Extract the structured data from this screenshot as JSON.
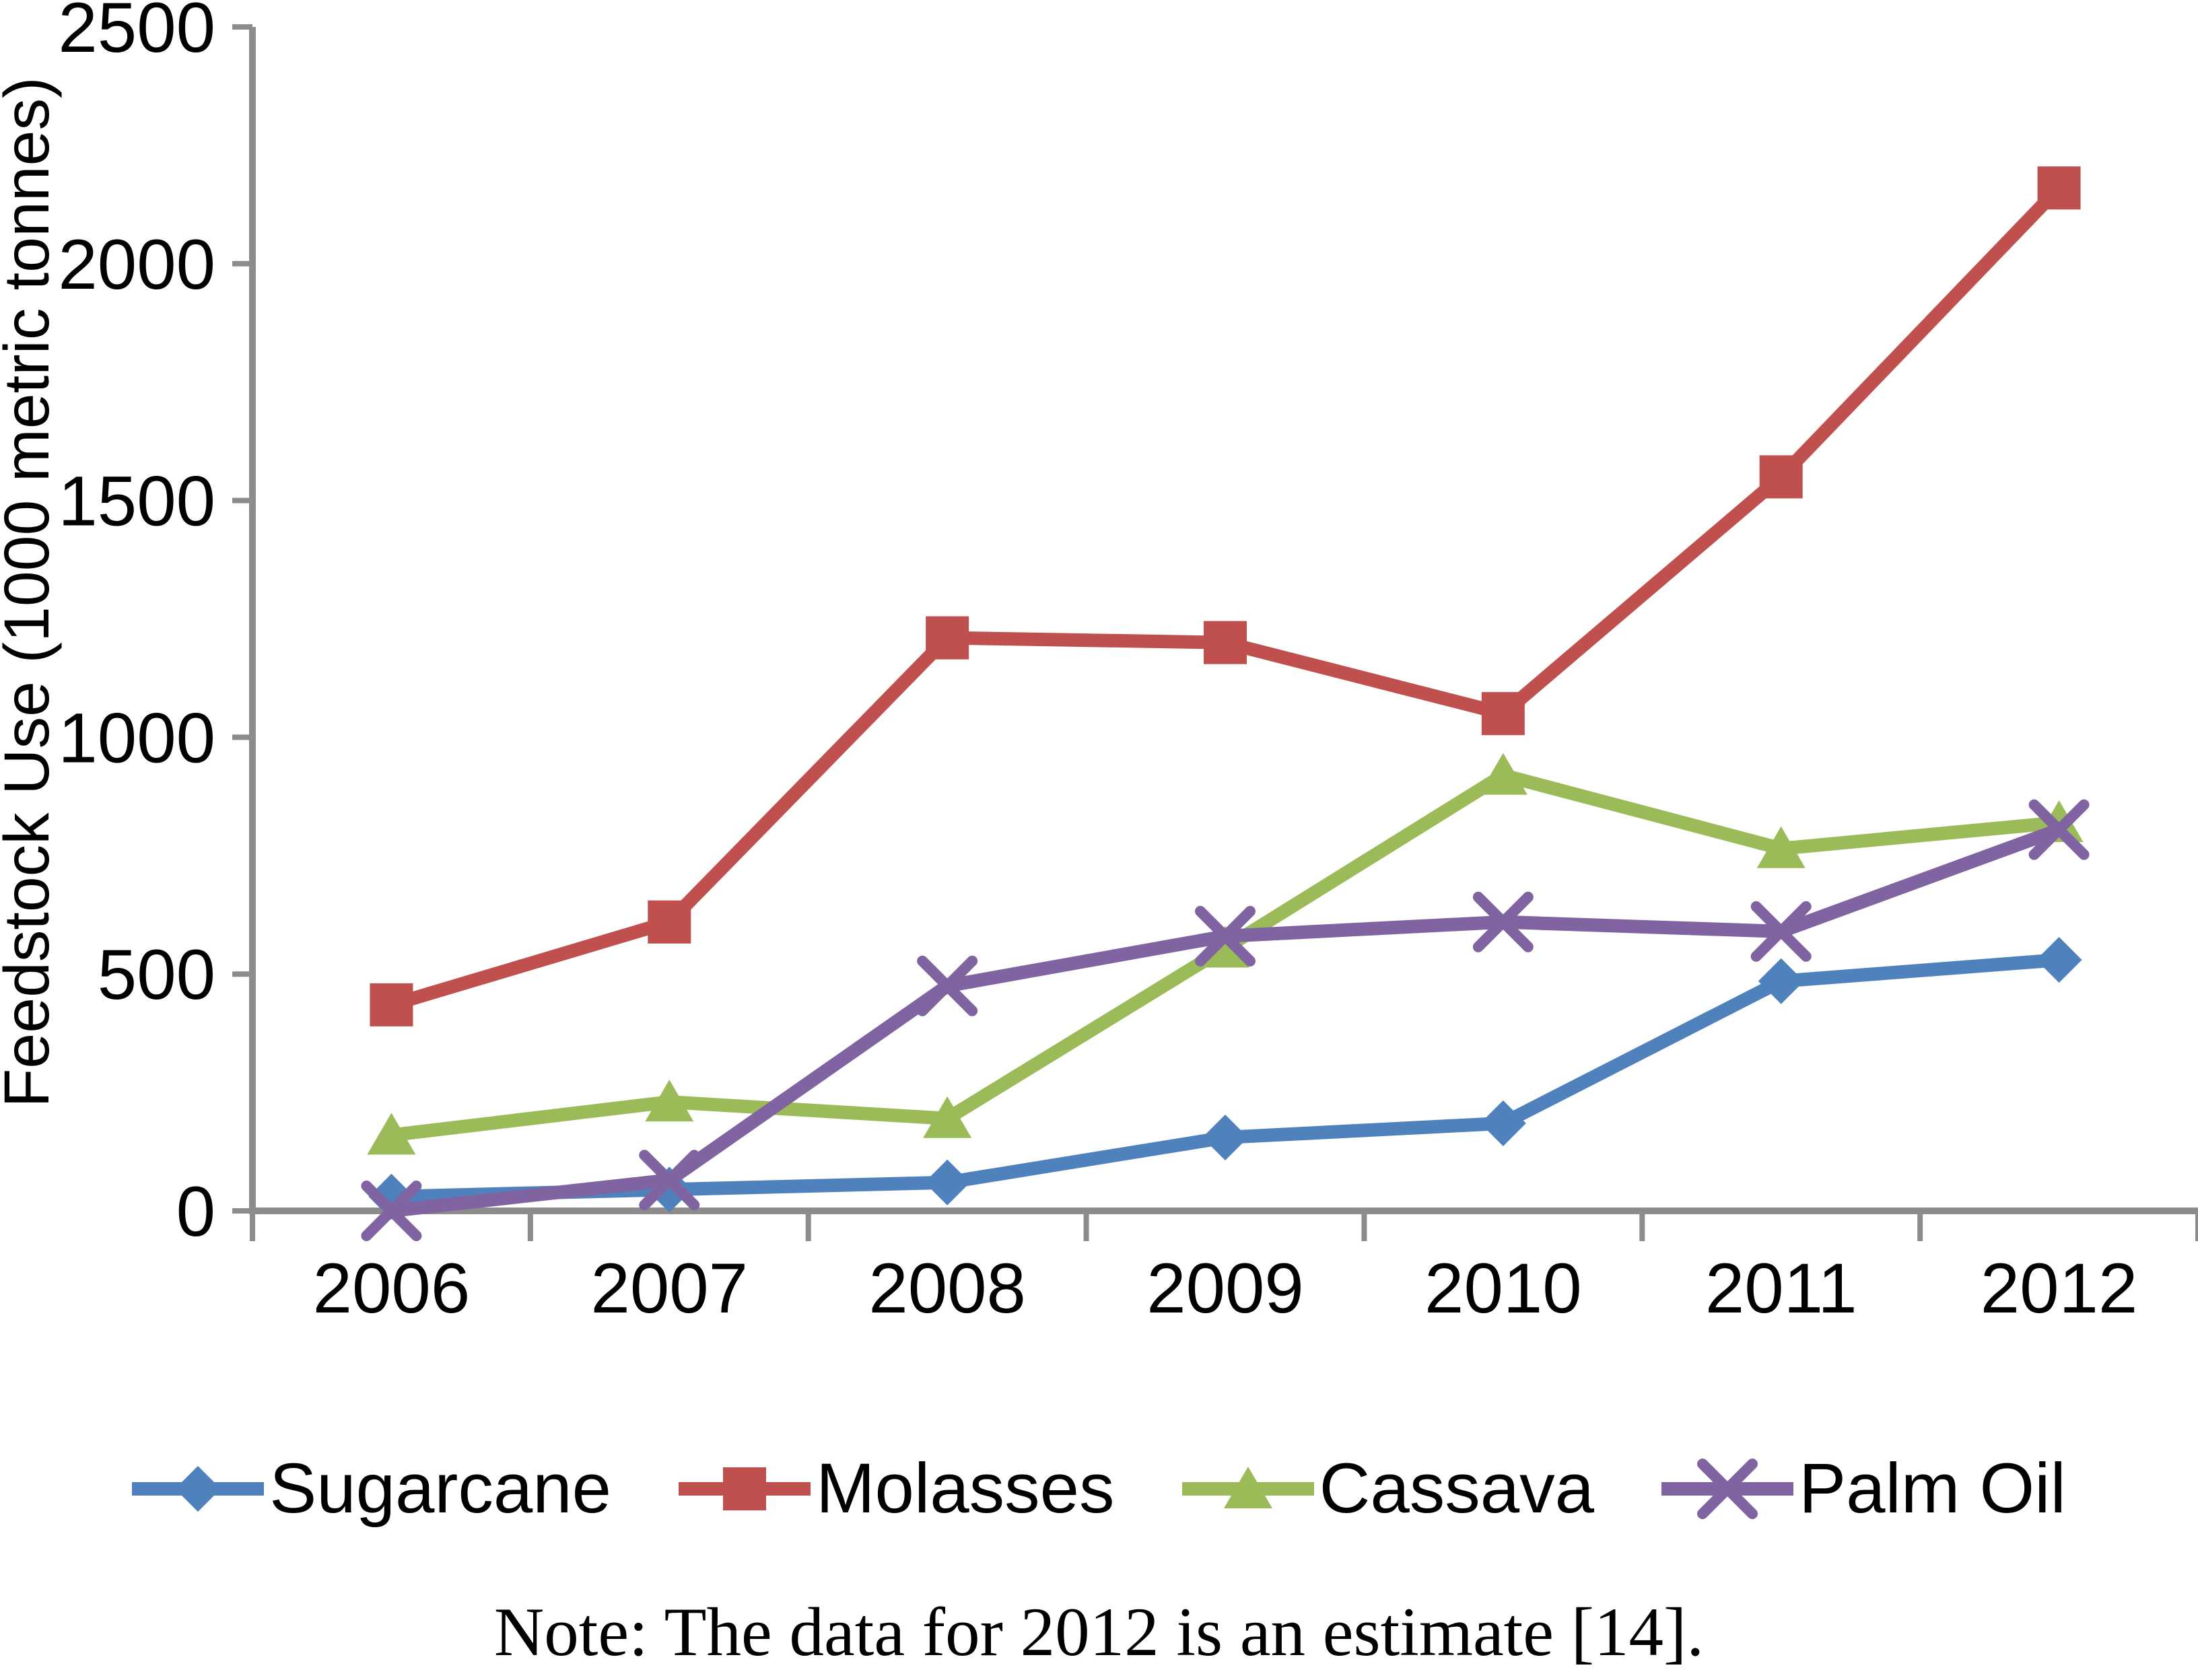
{
  "chart_data": {
    "type": "line",
    "title": "",
    "xlabel": "",
    "ylabel": "Feedstock Use (1000 metric tonnes)",
    "x": [
      "2006",
      "2007",
      "2008",
      "2009",
      "2010",
      "2011",
      "2012"
    ],
    "ylim": [
      0,
      2500
    ],
    "yticks": [
      0,
      500,
      1000,
      1500,
      2000,
      2500
    ],
    "grid": false,
    "legend_position": "bottom",
    "axis_color": "#8C8C8C",
    "text_color": "#000000",
    "series": [
      {
        "name": "Sugarcane",
        "marker": "diamond",
        "color": "#4F81BD",
        "values": [
          30,
          45,
          60,
          155,
          185,
          485,
          530
        ]
      },
      {
        "name": "Molasses",
        "marker": "square",
        "color": "#C0504D",
        "values": [
          435,
          610,
          1210,
          1200,
          1050,
          1550,
          2160
        ]
      },
      {
        "name": "Cassava",
        "marker": "triangle",
        "color": "#9BBB59",
        "values": [
          160,
          230,
          195,
          555,
          920,
          765,
          820
        ]
      },
      {
        "name": "Palm Oil",
        "marker": "x",
        "color": "#8064A2",
        "values": [
          0,
          65,
          475,
          580,
          610,
          590,
          805
        ]
      }
    ],
    "note": "Note: The data for 2012 is an estimate [14]."
  }
}
